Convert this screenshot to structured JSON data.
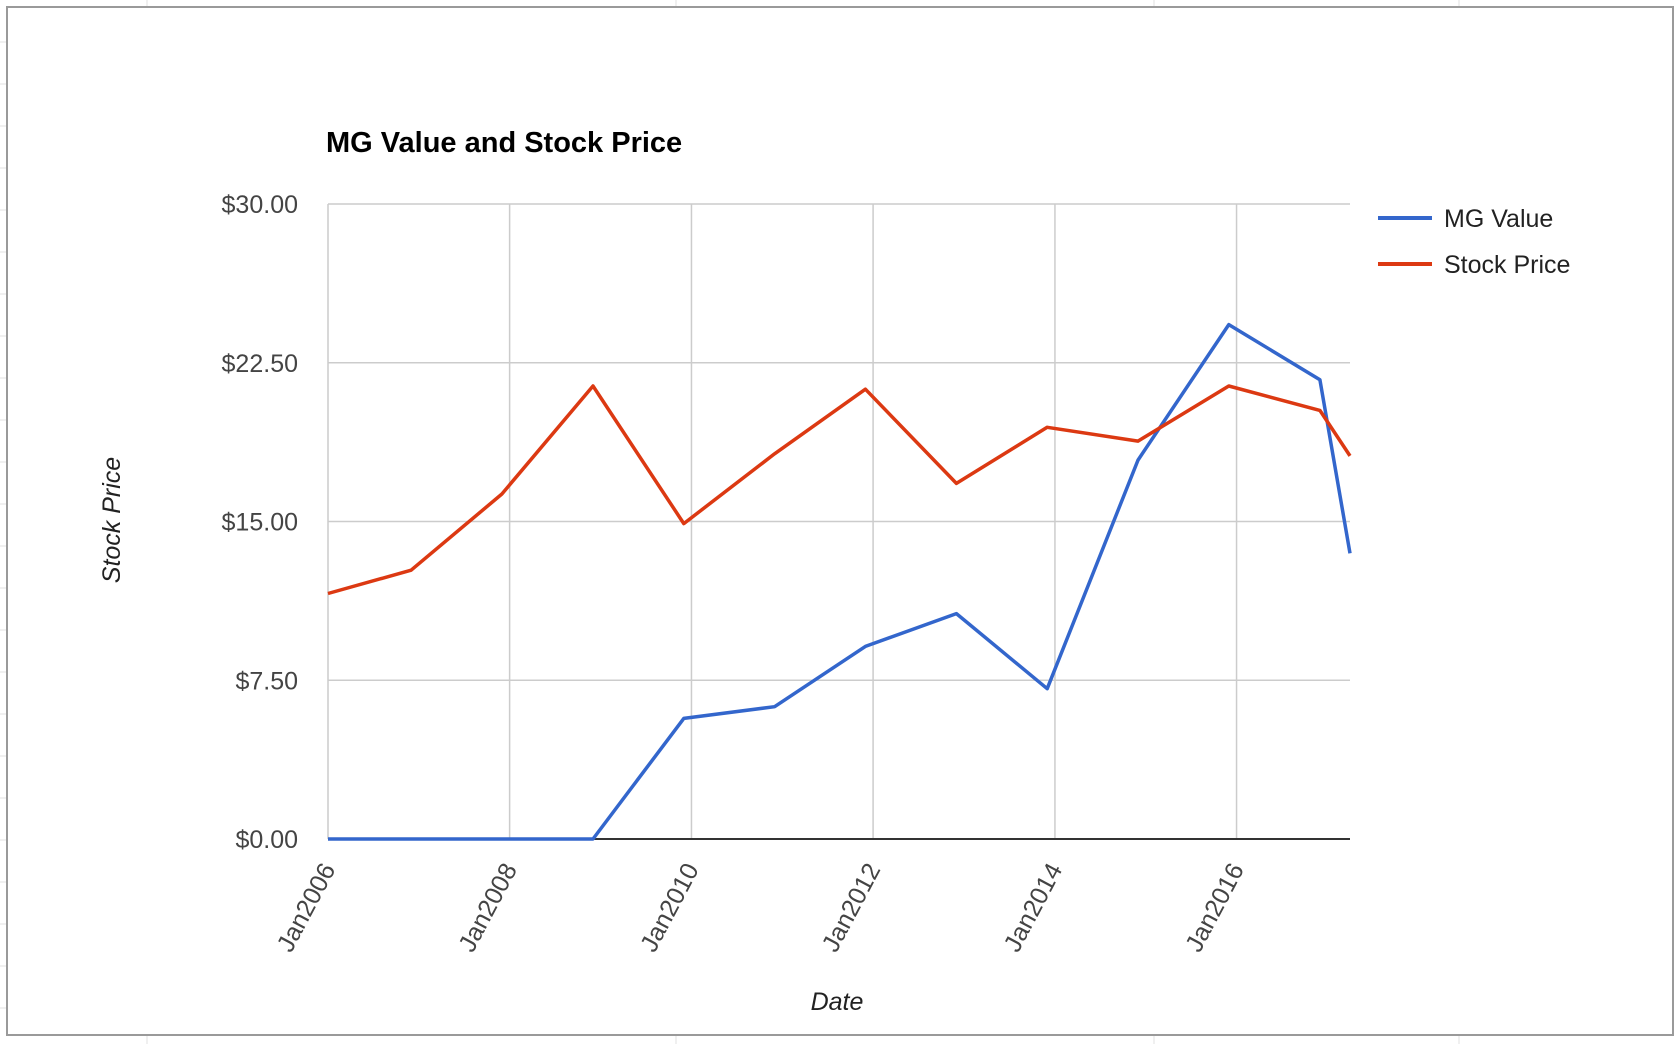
{
  "chart_data": {
    "type": "line",
    "title": "MG Value and Stock Price",
    "xlabel": "Date",
    "ylabel": "Stock Price",
    "ylim": [
      0,
      30
    ],
    "y_ticks": [
      "$0.00",
      "$7.50",
      "$15.00",
      "$22.50",
      "$30.00"
    ],
    "y_tick_values": [
      0,
      7.5,
      15,
      22.5,
      30
    ],
    "x_ticks": [
      "Jan2006",
      "Jan2008",
      "Jan2010",
      "Jan2012",
      "Jan2014",
      "Jan2016"
    ],
    "x_tick_values": [
      "2006-01-01",
      "2008-01-01",
      "2010-01-01",
      "2012-01-01",
      "2014-01-01",
      "2016-01-01"
    ],
    "xlim": [
      "2006-01-01",
      "2017-04-01"
    ],
    "grid": true,
    "legend": "right",
    "x": [
      "2006-01-01",
      "2006-12-01",
      "2007-12-01",
      "2008-12-01",
      "2009-12-01",
      "2010-12-01",
      "2011-12-01",
      "2012-12-01",
      "2013-12-01",
      "2014-12-01",
      "2015-12-01",
      "2016-12-01",
      "2017-04-01"
    ],
    "series": [
      {
        "name": "MG Value",
        "color": "#3366cc",
        "values": [
          0,
          0,
          0,
          0,
          5.7,
          6.25,
          9.1,
          10.65,
          7.1,
          17.9,
          24.3,
          21.7,
          13.5
        ]
      },
      {
        "name": "Stock Price",
        "color": "#dc3912",
        "values": [
          11.6,
          12.7,
          16.3,
          21.4,
          14.9,
          18.2,
          21.25,
          16.8,
          19.45,
          18.8,
          21.4,
          20.25,
          18.1
        ]
      }
    ]
  }
}
